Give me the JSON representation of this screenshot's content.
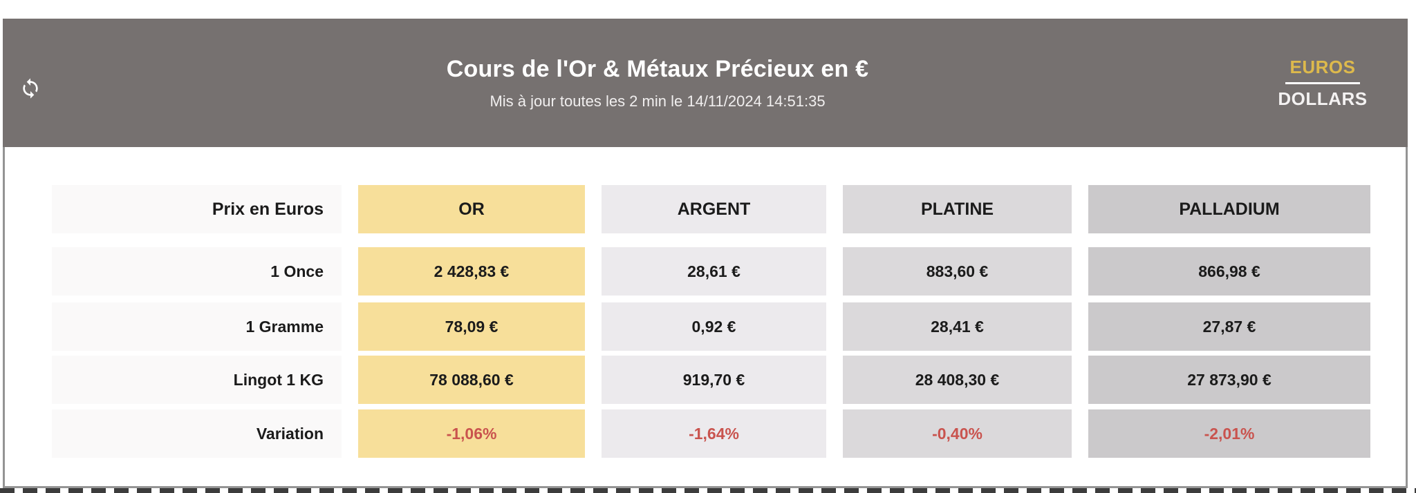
{
  "header": {
    "title": "Cours de l'Or & Métaux Précieux en €",
    "subtitle": "Mis à jour toutes les 2 min le 14/11/2024 14:51:35",
    "refresh_icon": "sync-refresh-arrows",
    "currency_toggle": {
      "selected": "EUROS",
      "alternative": "DOLLARS"
    }
  },
  "colors": {
    "header_bg": "#767170",
    "euros_gold": "#ddb94c",
    "label_cell_bg": "#faf9f9",
    "or_bg": "#f7df9a",
    "argent_bg": "#eceaed",
    "platine_bg": "#dbd9db",
    "palladium_bg": "#cbc9cb",
    "variation_negative": "#c9534e",
    "value_text": "#1b1b1b"
  },
  "table": {
    "row_label_header": "Prix en Euros",
    "columns": [
      {
        "key": "or",
        "label": "OR",
        "bg": "#f7df9a"
      },
      {
        "key": "argent",
        "label": "ARGENT",
        "bg": "#eceaed"
      },
      {
        "key": "platine",
        "label": "PLATINE",
        "bg": "#dbd9db"
      },
      {
        "key": "palladium",
        "label": "PALLADIUM",
        "bg": "#cbc9cb"
      }
    ],
    "rows": [
      {
        "label": "1 Once",
        "values": [
          "2 428,83 €",
          "28,61 €",
          "883,60 €",
          "866,98 €"
        ]
      },
      {
        "label": "1 Gramme",
        "values": [
          "78,09 €",
          "0,92 €",
          "28,41 €",
          "27,87 €"
        ]
      },
      {
        "label": "Lingot 1 KG",
        "values": [
          "78 088,60 €",
          "919,70 €",
          "28 408,30 €",
          "27 873,90 €"
        ]
      },
      {
        "label": "Variation",
        "values": [
          "-1,06%",
          "-1,64%",
          "-0,40%",
          "-2,01%"
        ],
        "is_variation": true
      }
    ]
  }
}
